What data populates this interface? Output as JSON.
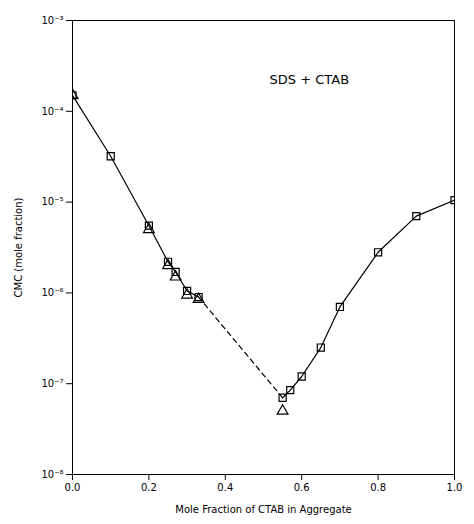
{
  "chart_data": {
    "type": "line",
    "title": "SDS + CTAB",
    "xlabel": "Mole Fraction of CTAB in Aggregate",
    "ylabel": "CMC (mole fraction)",
    "log": "y",
    "grid": false,
    "xlim": [
      0.0,
      1.0
    ],
    "ylim": [
      1e-08,
      0.001
    ],
    "xticks": [
      {
        "value": 0.0,
        "label": "0.0"
      },
      {
        "value": 0.2,
        "label": "0.2"
      },
      {
        "value": 0.4,
        "label": "0.4"
      },
      {
        "value": 0.6,
        "label": "0.6"
      },
      {
        "value": 0.8,
        "label": "0.8"
      },
      {
        "value": 1.0,
        "label": "1.0"
      }
    ],
    "yticks": [
      {
        "value": 1e-08,
        "label": "10⁻⁸"
      },
      {
        "value": 1e-07,
        "label": "10⁻⁷"
      },
      {
        "value": 1e-06,
        "label": "10⁻⁶"
      },
      {
        "value": 1e-05,
        "label": "10⁻⁵"
      },
      {
        "value": 0.0001,
        "label": "10⁻⁴"
      },
      {
        "value": 0.001,
        "label": "10⁻³"
      }
    ],
    "series": [
      {
        "x": [
          0.0,
          0.1,
          0.2,
          0.25,
          0.27,
          0.3,
          0.33
        ],
        "values": [
          0.00015,
          3.2e-05,
          5.5e-06,
          2.2e-06,
          1.7e-06,
          1.05e-06,
          9e-07
        ],
        "color": "#000000",
        "marker": "square",
        "line_style": "solid"
      },
      {
        "x": [
          0.55,
          0.57,
          0.6,
          0.65,
          0.7,
          0.8,
          0.9,
          1.0
        ],
        "values": [
          7e-08,
          8.5e-08,
          1.2e-07,
          2.5e-07,
          7e-07,
          2.8e-06,
          7e-06,
          1.05e-05
        ],
        "color": "#000000",
        "marker": "square",
        "line_style": "solid"
      },
      {
        "x": [
          0.33,
          0.55
        ],
        "values": [
          9e-07,
          7e-08
        ],
        "color": "#000000",
        "marker": "none",
        "line_style": "dashed"
      },
      {
        "x": [
          0.0,
          0.2,
          0.25,
          0.27,
          0.3,
          0.33,
          0.55
        ],
        "values": [
          0.00015,
          5e-06,
          2e-06,
          1.5e-06,
          9.5e-07,
          8.5e-07,
          5e-08
        ],
        "color": "#000000",
        "marker": "triangle",
        "line_style": "none"
      }
    ]
  }
}
